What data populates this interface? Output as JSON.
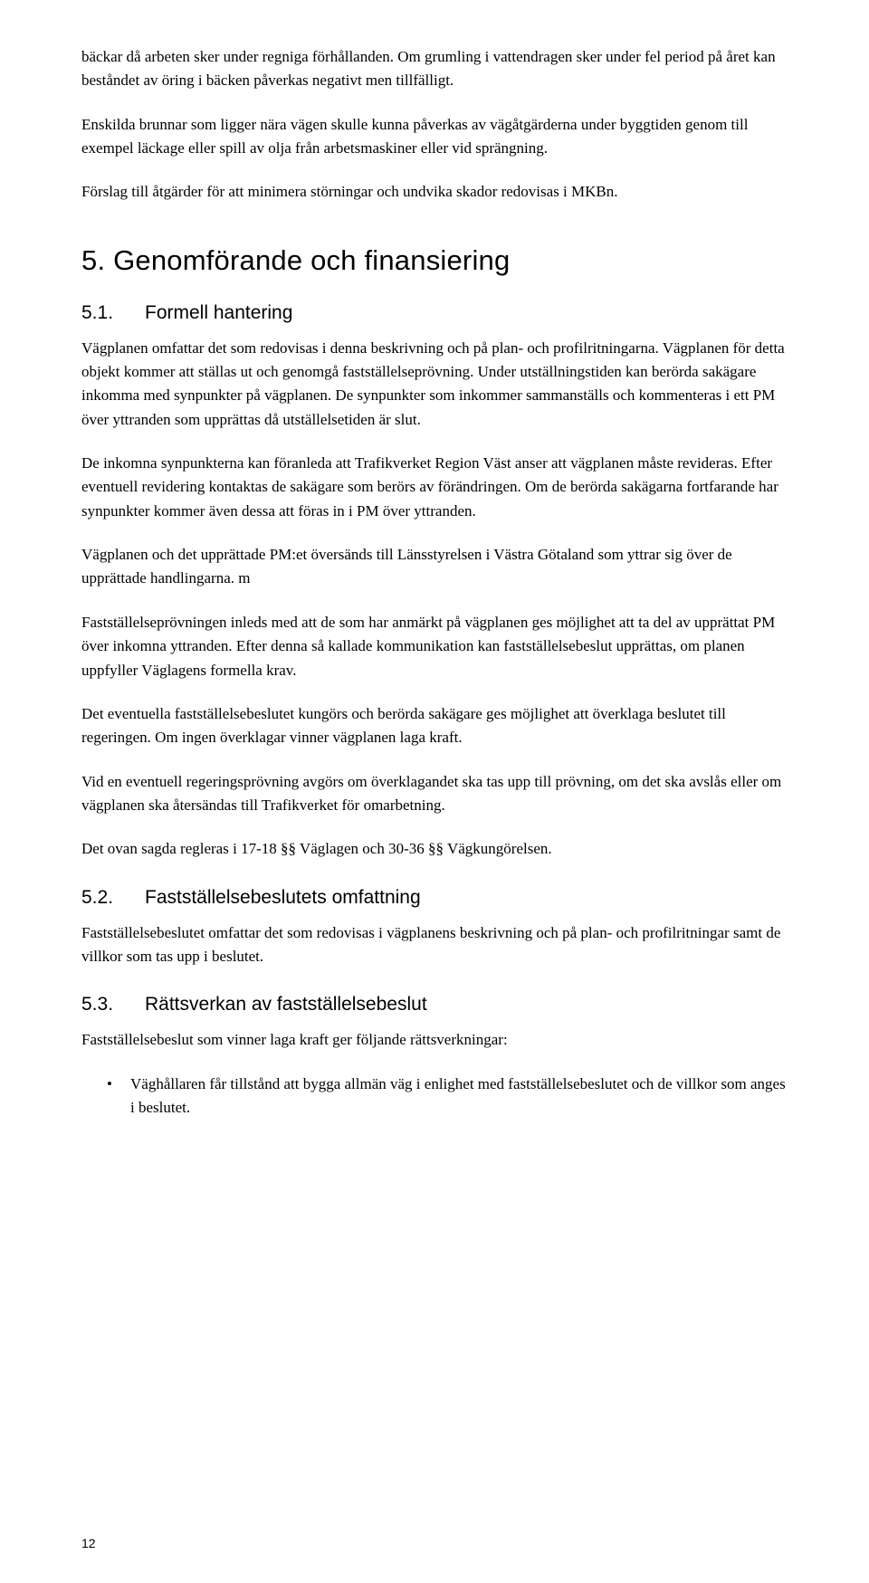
{
  "intro": {
    "p1": "bäckar då arbeten sker under regniga förhållanden. Om grumling i vattendragen sker under fel period på året kan beståndet av öring i bäcken påverkas negativt men tillfälligt.",
    "p2": "Enskilda brunnar som ligger nära vägen skulle kunna påverkas av vägåtgärderna under byggtiden genom till exempel läckage eller spill av olja från arbetsmaskiner eller vid sprängning.",
    "p3": "Förslag till åtgärder för att minimera störningar och undvika skador redovisas i MKBn."
  },
  "section5": {
    "heading": "5. Genomförande och finansiering",
    "s51": {
      "num": "5.1.",
      "title": "Formell hantering",
      "p1": "Vägplanen omfattar det som redovisas i denna beskrivning och på plan- och profilritningarna. Vägplanen för detta objekt kommer att ställas ut och genomgå fastställelseprövning. Under utställningstiden kan berörda sakägare inkomma med synpunkter på vägplanen. De synpunkter som inkommer sammanställs och kommenteras i ett PM över yttranden som upprättas då utställelsetiden är slut.",
      "p2": "De inkomna synpunkterna kan föranleda att Trafikverket Region Väst anser att vägplanen måste revideras. Efter eventuell revidering kontaktas de sakägare som berörs av förändringen. Om de berörda sakägarna fortfarande har synpunkter kommer även dessa att föras in i PM över yttranden.",
      "p3": "Vägplanen och det upprättade PM:et översänds till Länsstyrelsen i Västra Götaland som yttrar sig över de upprättade handlingarna. m",
      "p4": "Fastställelseprövningen inleds med att de som har anmärkt på vägplanen ges möjlighet att ta del av upprättat PM över inkomna yttranden. Efter denna så kallade kommunikation kan fastställelsebeslut upprättas, om planen uppfyller Väglagens formella krav.",
      "p5": "Det eventuella fastställelsebeslutet kungörs och berörda sakägare ges möjlighet att överklaga beslutet till regeringen. Om ingen överklagar vinner vägplanen laga kraft.",
      "p6": "Vid en eventuell regeringsprövning avgörs om överklagandet ska tas upp till prövning, om det ska avslås eller om vägplanen ska återsändas till Trafikverket för omarbetning.",
      "p7": "Det ovan sagda regleras i 17-18 §§ Väglagen och 30-36 §§ Vägkungörelsen."
    },
    "s52": {
      "num": "5.2.",
      "title": "Fastställelsebeslutets omfattning",
      "p1": "Fastställelsebeslutet omfattar det som redovisas i vägplanens beskrivning och på plan- och profilritningar samt de villkor som tas upp i beslutet."
    },
    "s53": {
      "num": "5.3.",
      "title": "Rättsverkan av fastställelsebeslut",
      "p1": "Fastställelsebeslut som vinner laga kraft ger följande rättsverkningar:",
      "bullet1": "Väghållaren får tillstånd att bygga allmän väg i enlighet med fastställelsebeslutet och de villkor som anges i beslutet."
    }
  },
  "pageNumber": "12"
}
